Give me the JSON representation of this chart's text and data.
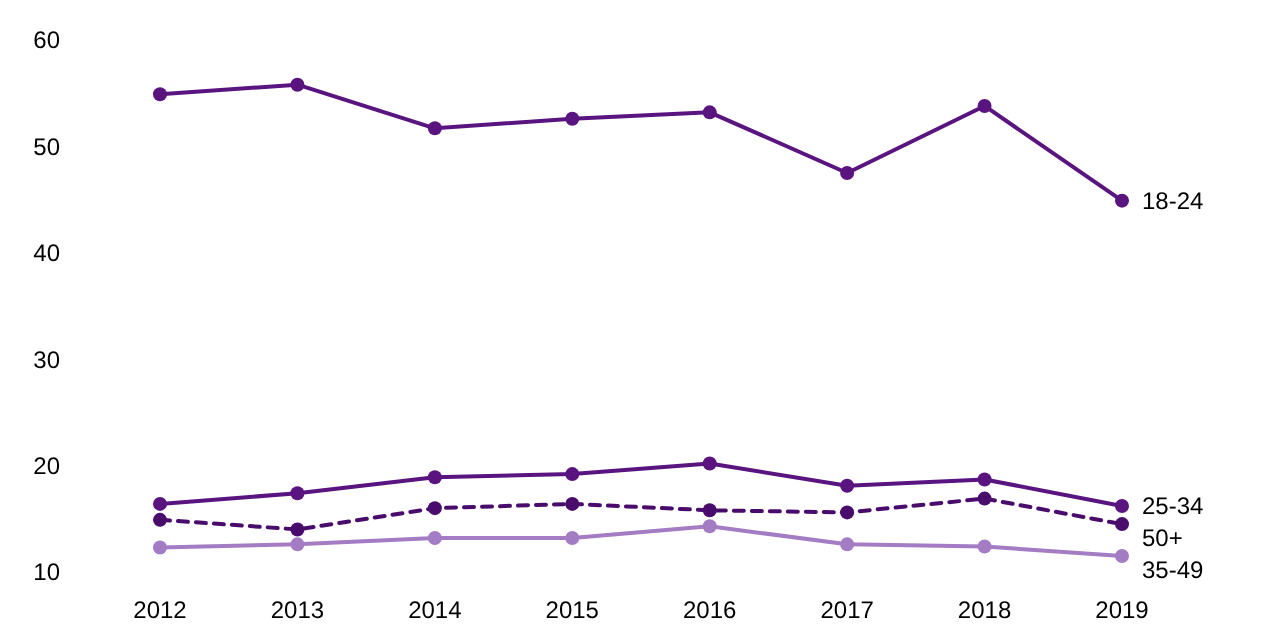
{
  "chart_data": {
    "type": "line",
    "categories": [
      "2012",
      "2013",
      "2014",
      "2015",
      "2016",
      "2017",
      "2018",
      "2019"
    ],
    "ylim": [
      10,
      60
    ],
    "yticks": [
      10,
      20,
      30,
      40,
      50,
      60
    ],
    "marker": "circle",
    "series": [
      {
        "name": "18-24",
        "color": "#5a1480",
        "line_style": "solid",
        "values": [
          54.9,
          55.8,
          51.7,
          52.6,
          53.2,
          47.5,
          53.8,
          44.9
        ]
      },
      {
        "name": "25-34",
        "color": "#5a1480",
        "line_style": "solid",
        "values": [
          16.4,
          17.4,
          18.9,
          19.2,
          20.2,
          18.1,
          18.7,
          16.2
        ]
      },
      {
        "name": "50+",
        "color": "#4a0c6c",
        "line_style": "dashed",
        "values": [
          14.9,
          14.0,
          16.0,
          16.4,
          15.8,
          15.6,
          16.9,
          14.5
        ]
      },
      {
        "name": "35-49",
        "color": "#a47cc4",
        "line_style": "solid",
        "values": [
          12.3,
          12.6,
          13.2,
          13.2,
          14.3,
          12.6,
          12.4,
          11.5
        ]
      }
    ]
  }
}
